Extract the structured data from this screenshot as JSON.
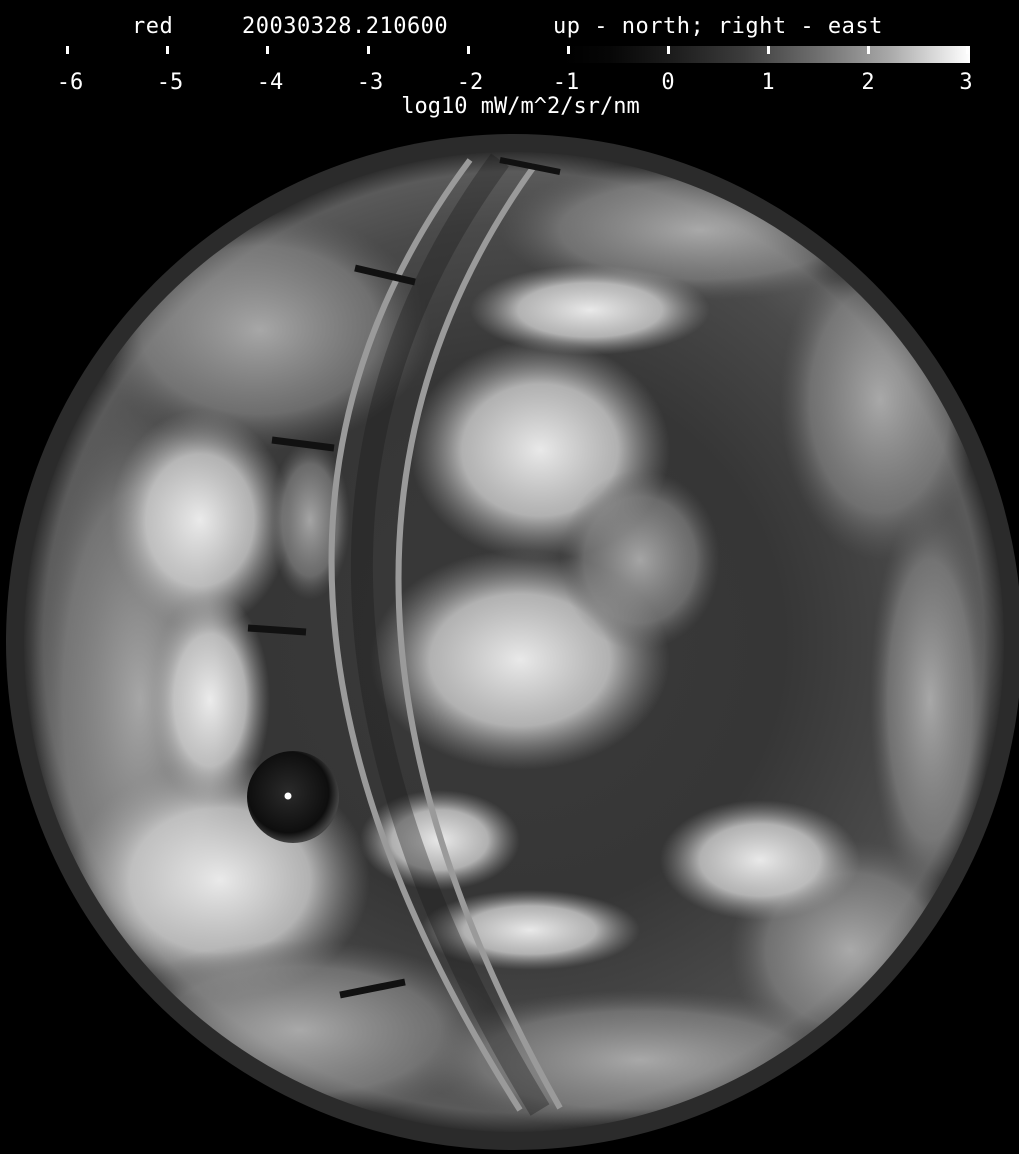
{
  "header": {
    "channel": "red",
    "timestamp": "20030328.210600",
    "orientation": "up - north; right - east"
  },
  "colorbar": {
    "ticks": [
      "-6",
      "-5",
      "-4",
      "-3",
      "-2",
      "-1",
      "0",
      "1",
      "2",
      "3"
    ],
    "unit_label": "log10 mW/m^2/sr/nm",
    "colormap": "grayscale"
  },
  "image": {
    "description_icon": "fisheye-sky-image",
    "shadow_arm_icon": "shadowband-arc",
    "occulter_icon": "sun-occulter-ball"
  }
}
